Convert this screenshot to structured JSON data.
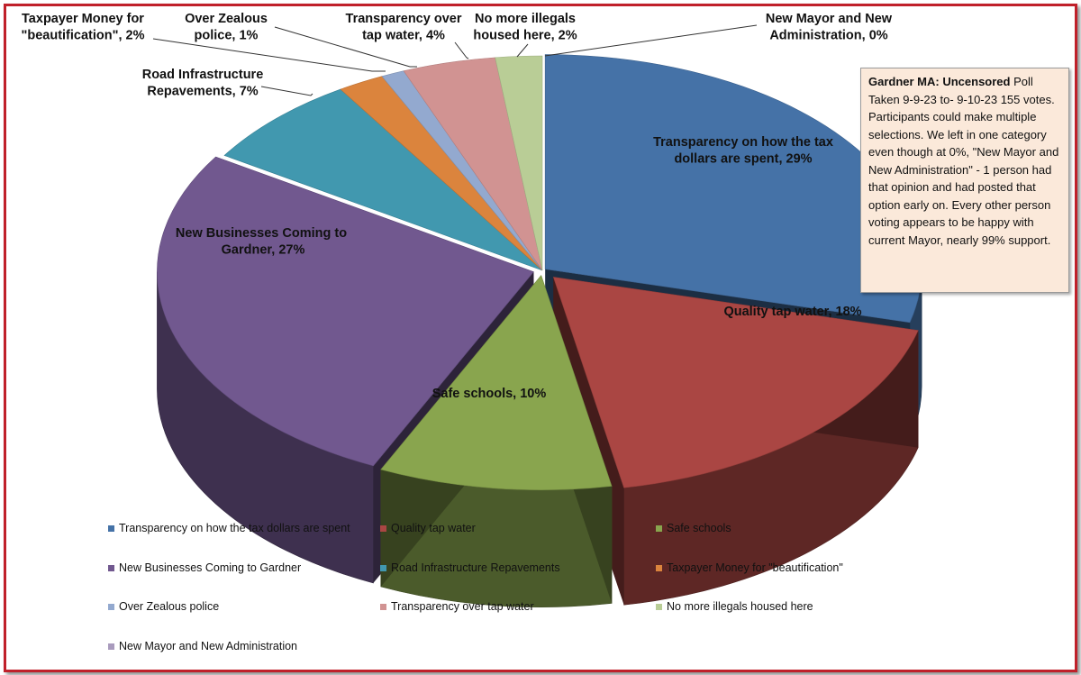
{
  "chart_data": {
    "type": "pie",
    "style": "3d-exploded",
    "title": "",
    "slices": [
      {
        "name": "Transparency on how the tax dollars are spent",
        "value": 29,
        "label": "Transparency on how the tax dollars are spent, 29%",
        "color": "#4572a7"
      },
      {
        "name": "Quality tap water",
        "value": 18,
        "label": "Quality tap water, 18%",
        "color": "#aa4643"
      },
      {
        "name": "Safe schools",
        "value": 10,
        "label": "Safe schools, 10%",
        "color": "#89a54e"
      },
      {
        "name": "New Businesses Coming to Gardner",
        "value": 27,
        "label": "New Businesses Coming to Gardner, 27%",
        "color": "#71588f"
      },
      {
        "name": "Road Infrastructure Repavements",
        "value": 7,
        "label": "Road Infrastructure Repavements, 7%",
        "color": "#4198af"
      },
      {
        "name": "Taxpayer Money for \"beautification\"",
        "value": 2,
        "label": "Taxpayer Money for \"beautification\", 2%",
        "color": "#db843d"
      },
      {
        "name": "Over Zealous police",
        "value": 1,
        "label": "Over Zealous police, 1%",
        "color": "#93a9cf"
      },
      {
        "name": "Transparency over tap water",
        "value": 4,
        "label": "Transparency over tap water, 4%",
        "color": "#d19392"
      },
      {
        "name": "No more illegals housed here",
        "value": 2,
        "label": "No more illegals housed here, 2%",
        "color": "#b9cd96"
      },
      {
        "name": "New Mayor and New Administration",
        "value": 0,
        "label": "New Mayor and New Administration, 0%",
        "color": "#a99bbd"
      }
    ],
    "legend_position": "bottom"
  },
  "note": {
    "bold": "Gardner MA: Uncensored",
    "text": " Poll Taken 9-9-23 to- 9-10-23 155 votes.  Participants could make multiple selections.  We left in one category even though at 0%, \"New Mayor and New Administration\" - 1 person had that opinion and had posted that option early on.   Every other person voting appears to be happy with current Mayor, nearly 99% support."
  },
  "colors": {
    "border": "#c0202a",
    "note_background": "#fbe9da"
  }
}
